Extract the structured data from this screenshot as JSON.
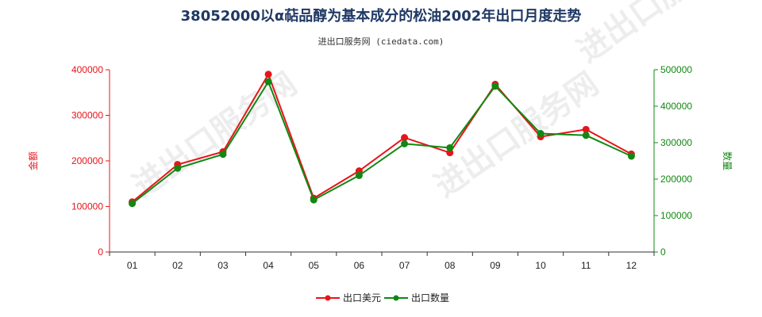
{
  "header": {
    "title": "38052000以α萜品醇为基本成分的松油2002年出口月度走势",
    "subtitle": "进出口服务网 (ciedata.com)"
  },
  "watermark": "进出口服务网",
  "colors": {
    "left_series": "#e8141b",
    "right_series": "#118811",
    "left_axis": "#e8141b",
    "right_axis": "#118811"
  },
  "chart_data": {
    "type": "line",
    "categories": [
      "01",
      "02",
      "03",
      "04",
      "05",
      "06",
      "07",
      "08",
      "09",
      "10",
      "11",
      "12"
    ],
    "y_left": {
      "label": "金额",
      "ylim": [
        0,
        400000
      ],
      "ticks": [
        "0",
        "100000",
        "200000",
        "300000",
        "400000"
      ]
    },
    "y_right": {
      "label": "数量",
      "ylim": [
        0,
        500000
      ],
      "ticks": [
        "0",
        "100000",
        "200000",
        "300000",
        "400000",
        "500000"
      ]
    },
    "series": [
      {
        "name": "出口美元",
        "axis": "left",
        "color": "#e8141b",
        "values": [
          110000,
          192000,
          220000,
          390000,
          118000,
          178000,
          251000,
          218000,
          368000,
          253000,
          269000,
          215000
        ]
      },
      {
        "name": "出口数量",
        "axis": "right",
        "color": "#118811",
        "values": [
          133000,
          230000,
          268000,
          467000,
          143000,
          210000,
          297000,
          286000,
          455000,
          325000,
          320000,
          263000
        ]
      }
    ],
    "legend_position": "bottom-center",
    "grid": false
  }
}
